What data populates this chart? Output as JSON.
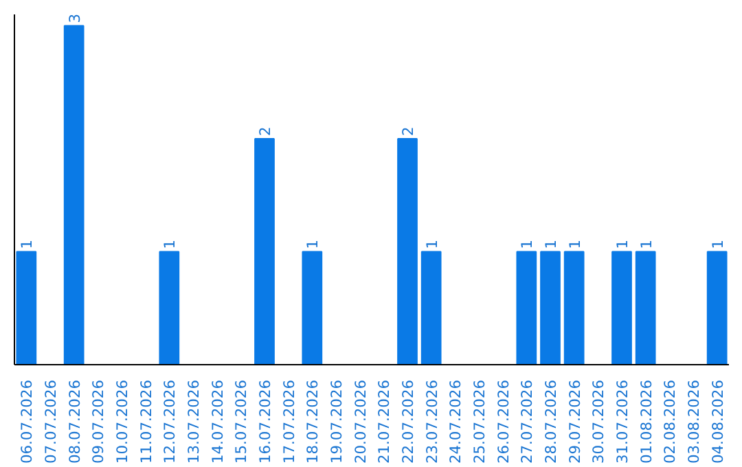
{
  "chart_data": {
    "type": "bar",
    "categories": [
      "06.07.2026",
      "07.07.2026",
      "08.07.2026",
      "09.07.2026",
      "10.07.2026",
      "11.07.2026",
      "12.07.2026",
      "13.07.2026",
      "14.07.2026",
      "15.07.2026",
      "16.07.2026",
      "17.07.2026",
      "18.07.2026",
      "19.07.2026",
      "20.07.2026",
      "21.07.2026",
      "22.07.2026",
      "23.07.2026",
      "24.07.2026",
      "25.07.2026",
      "26.07.2026",
      "27.07.2026",
      "28.07.2026",
      "29.07.2026",
      "30.07.2026",
      "31.07.2026",
      "01.08.2026",
      "02.08.2026",
      "03.08.2026",
      "04.08.2026"
    ],
    "values": [
      1,
      0,
      3,
      0,
      0,
      0,
      1,
      0,
      0,
      0,
      2,
      0,
      1,
      0,
      0,
      0,
      2,
      1,
      0,
      0,
      0,
      1,
      1,
      1,
      0,
      1,
      1,
      0,
      0,
      1
    ],
    "value_labels": [
      "1",
      null,
      "3",
      null,
      null,
      null,
      "1",
      null,
      null,
      null,
      "2",
      null,
      "1",
      null,
      null,
      null,
      "2",
      "1",
      null,
      null,
      null,
      "1",
      "1",
      "1",
      null,
      "1",
      "1",
      null,
      null,
      "1"
    ],
    "color": "#0a7ae6",
    "ylim": [
      0,
      3.1
    ],
    "tick_labels": "x",
    "grid": false
  }
}
